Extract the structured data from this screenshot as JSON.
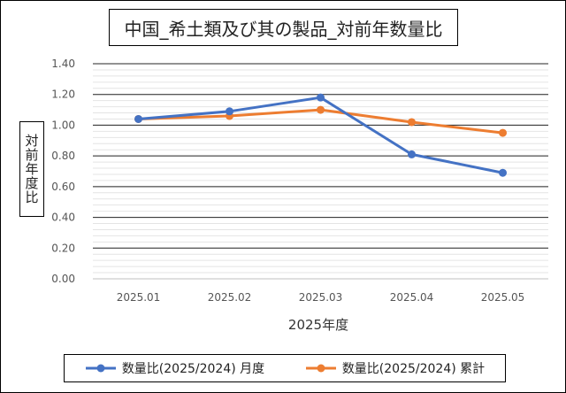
{
  "chart_data": {
    "type": "line",
    "title": "中国_希土類及び其の製品_対前年数量比",
    "xlabel": "2025年度",
    "ylabel": "対前年度比",
    "categories": [
      "2025.01",
      "2025.02",
      "2025.03",
      "2025.04",
      "2025.05"
    ],
    "ylim": [
      0,
      1.4
    ],
    "yticks": [
      "0.00",
      "0.20",
      "0.40",
      "0.60",
      "0.80",
      "1.00",
      "1.20",
      "1.40"
    ],
    "grid": true,
    "legend_position": "bottom",
    "series": [
      {
        "name": "数量比(2025/2024) 月度",
        "color": "#4472C4",
        "values": [
          1.04,
          1.09,
          1.18,
          0.81,
          0.69
        ]
      },
      {
        "name": "数量比(2025/2024) 累計",
        "color": "#ED7D31",
        "values": [
          1.04,
          1.06,
          1.1,
          1.02,
          0.95
        ]
      }
    ]
  }
}
